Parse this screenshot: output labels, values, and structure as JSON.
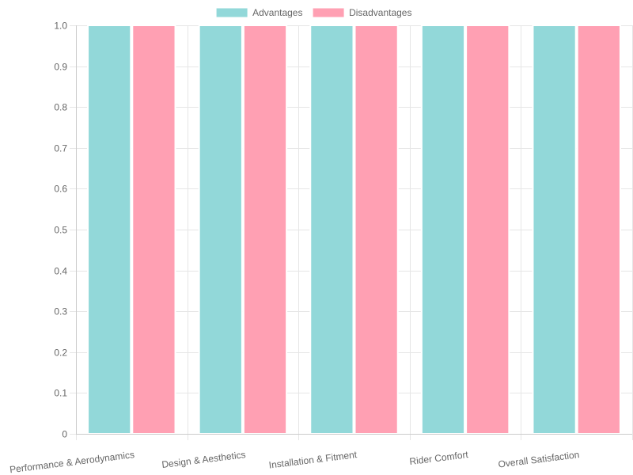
{
  "chart_data": {
    "type": "bar",
    "categories": [
      "Performance & Aerodynamics",
      "Design & Aesthetics",
      "Installation & Fitment",
      "Rider Comfort",
      "Overall Satisfaction"
    ],
    "series": [
      {
        "name": "Advantages",
        "values": [
          1,
          1,
          1,
          1,
          1
        ],
        "color": "#92d8d9",
        "border_color": "#ffffff"
      },
      {
        "name": "Disadvantages",
        "values": [
          1,
          1,
          1,
          1,
          1
        ],
        "color": "#ffa0b3",
        "border_color": "#ffffff"
      }
    ],
    "title": "",
    "xlabel": "",
    "ylabel": "",
    "ylim": [
      0,
      1
    ],
    "y_ticks": [
      "0",
      "0.1",
      "0.2",
      "0.3",
      "0.4",
      "0.5",
      "0.6",
      "0.7",
      "0.8",
      "0.9",
      "1.0"
    ],
    "grid": true,
    "legend_position": "top",
    "colors": {
      "grid": "#e6e6e6",
      "axis": "#cccccc",
      "text": "#666666"
    }
  }
}
